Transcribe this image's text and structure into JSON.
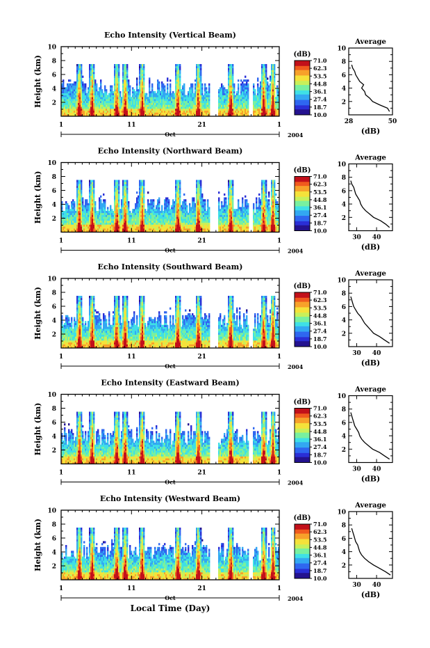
{
  "palette": [
    "#24128f",
    "#2a2fd6",
    "#2f67f0",
    "#33a8f2",
    "#3fe0e6",
    "#78f0a0",
    "#c8f05a",
    "#f5e23a",
    "#f7a12a",
    "#f05a1e",
    "#c2101a"
  ],
  "colorbar": {
    "unit": "(dB)",
    "tick_labels": [
      "71.0",
      "62.3",
      "53.5",
      "44.8",
      "36.1",
      "27.4",
      "18.7",
      "10.0"
    ]
  },
  "x_axis": {
    "tick_labels": [
      "1",
      "11",
      "21",
      "1"
    ],
    "month": "Oct",
    "year": "2004",
    "xlabel": "Local Time (Day)"
  },
  "y_axis": {
    "ylabel": "Height (km)",
    "tick_labels": [
      "2",
      "4",
      "6",
      "8",
      "10"
    ]
  },
  "avg_title": "Average",
  "avg_xlabel": "(dB)",
  "chart_data": [
    {
      "type": "heatmap",
      "title": "Echo Intensity (Vertical Beam)",
      "beam": "vertical",
      "xlim": [
        1,
        32
      ],
      "ylim": [
        0,
        10
      ],
      "clim": [
        10.0,
        71.0
      ],
      "average_profile": {
        "type": "line",
        "x_ticks": [
          "28",
          "50"
        ],
        "xlim": [
          28,
          50
        ],
        "ylim": [
          0,
          10
        ],
        "height_km": [
          0.5,
          1.0,
          1.5,
          2.0,
          2.5,
          3.0,
          3.5,
          4.0,
          4.5,
          5.0,
          5.5,
          6.0,
          6.5,
          7.0,
          7.5
        ],
        "db": [
          48.5,
          47.5,
          43.5,
          40.0,
          38.5,
          36.5,
          36.0,
          34.5,
          35.5,
          33.5,
          32.5,
          31.5,
          31.0,
          30.0,
          29.5
        ]
      }
    },
    {
      "type": "heatmap",
      "title": "Echo Intensity (Northward Beam)",
      "beam": "northward",
      "xlim": [
        1,
        32
      ],
      "ylim": [
        0,
        10
      ],
      "clim": [
        10.0,
        71.0
      ],
      "average_profile": {
        "type": "line",
        "x_ticks": [
          "30",
          "40"
        ],
        "xlim": [
          26,
          48
        ],
        "ylim": [
          0,
          10
        ],
        "height_km": [
          0.5,
          1.0,
          1.5,
          2.0,
          2.5,
          3.0,
          3.5,
          4.0,
          4.5,
          5.0,
          5.5,
          6.0,
          6.5,
          7.0,
          7.5
        ],
        "db": [
          46.5,
          44.5,
          42.0,
          38.5,
          36.5,
          34.5,
          33.0,
          32.0,
          31.5,
          30.5,
          29.5,
          29.0,
          28.5,
          27.5,
          27.0
        ]
      }
    },
    {
      "type": "heatmap",
      "title": "Echo Intensity (Southward Beam)",
      "beam": "southward",
      "xlim": [
        1,
        32
      ],
      "ylim": [
        0,
        10
      ],
      "clim": [
        10.0,
        71.0
      ],
      "average_profile": {
        "type": "line",
        "x_ticks": [
          "30",
          "40"
        ],
        "xlim": [
          26,
          48
        ],
        "ylim": [
          0,
          10
        ],
        "height_km": [
          0.5,
          1.0,
          1.5,
          2.0,
          2.5,
          3.0,
          3.5,
          4.0,
          4.5,
          5.0,
          5.5,
          6.0,
          6.5,
          7.0,
          7.5
        ],
        "db": [
          46.5,
          44.0,
          41.5,
          38.5,
          37.0,
          35.5,
          34.0,
          33.0,
          32.0,
          30.5,
          29.5,
          28.5,
          28.0,
          27.5,
          27.0
        ]
      }
    },
    {
      "type": "heatmap",
      "title": "Echo Intensity (Eastward Beam)",
      "beam": "eastward",
      "xlim": [
        1,
        32
      ],
      "ylim": [
        0,
        10
      ],
      "clim": [
        10.0,
        71.0
      ],
      "average_profile": {
        "type": "line",
        "x_ticks": [
          "30",
          "40"
        ],
        "xlim": [
          26,
          48
        ],
        "ylim": [
          0,
          10
        ],
        "height_km": [
          0.5,
          1.0,
          1.5,
          2.0,
          2.5,
          3.0,
          3.5,
          4.0,
          4.5,
          5.0,
          5.5,
          6.0,
          6.5,
          7.0,
          7.5
        ],
        "db": [
          46.5,
          44.0,
          41.5,
          38.0,
          36.0,
          34.0,
          32.5,
          31.5,
          31.0,
          30.0,
          29.0,
          28.5,
          28.0,
          27.5,
          27.0
        ]
      }
    },
    {
      "type": "heatmap",
      "title": "Echo Intensity (Westward Beam)",
      "beam": "westward",
      "xlim": [
        1,
        32
      ],
      "ylim": [
        0,
        10
      ],
      "clim": [
        10.0,
        71.0
      ],
      "average_profile": {
        "type": "line",
        "x_ticks": [
          "30",
          "40"
        ],
        "xlim": [
          26,
          48
        ],
        "ylim": [
          0,
          10
        ],
        "height_km": [
          0.5,
          1.0,
          1.5,
          2.0,
          2.5,
          3.0,
          3.5,
          4.0,
          4.5,
          5.0,
          5.5,
          6.0,
          6.5,
          7.0,
          7.5
        ],
        "db": [
          47.0,
          44.5,
          41.5,
          38.5,
          36.0,
          34.0,
          32.5,
          31.5,
          31.0,
          30.5,
          29.5,
          29.0,
          28.5,
          28.0,
          27.5
        ]
      }
    }
  ]
}
